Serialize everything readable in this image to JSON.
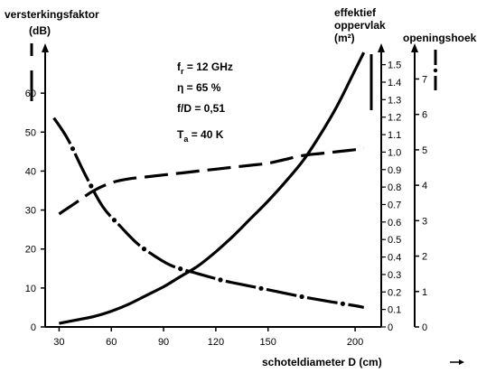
{
  "chart_data": {
    "type": "line",
    "x": {
      "label": "schoteldiameter D (cm)",
      "ticks": [
        30,
        60,
        90,
        120,
        150,
        200
      ],
      "range": [
        22,
        215
      ]
    },
    "axes": {
      "gain": {
        "title_line1": "versterkingsfaktor",
        "title_line2": "(dB)",
        "ticks": [
          0,
          10,
          20,
          30,
          40,
          50,
          60
        ],
        "range": [
          0,
          70
        ]
      },
      "area": {
        "title_line1": "effektief",
        "title_line2": "oppervlak",
        "title_line3": "(m²)",
        "ticks": [
          "0",
          "0.1",
          "0.2",
          "0.3",
          "0.4",
          "0.5",
          "0.6",
          "0.7",
          "0.8",
          "0.9",
          "1.0",
          "1.1",
          "1.2",
          "1.3",
          "1.4",
          "1.5"
        ],
        "range": [
          0,
          1.56
        ]
      },
      "angle": {
        "title": "openingshoek",
        "ticks": [
          0,
          1,
          2,
          3,
          4,
          5,
          6,
          7
        ],
        "range": [
          0,
          7.7
        ]
      }
    },
    "parameters": {
      "line1": "f",
      "line1_sub": "r",
      "line1_rest": " = 12 GHz",
      "line2": "η = 65 %",
      "line3": "f/D = 0,51",
      "line4": "T",
      "line4_sub": "a",
      "line4_rest": " = 40 K"
    },
    "series": [
      {
        "axis": "area",
        "style": "solid",
        "points": [
          [
            30,
            0.02
          ],
          [
            40,
            0.04
          ],
          [
            50,
            0.06
          ],
          [
            60,
            0.09
          ],
          [
            70,
            0.13
          ],
          [
            80,
            0.18
          ],
          [
            90,
            0.23
          ],
          [
            100,
            0.29
          ],
          [
            110,
            0.35
          ],
          [
            120,
            0.43
          ],
          [
            130,
            0.52
          ],
          [
            140,
            0.62
          ],
          [
            150,
            0.72
          ],
          [
            160,
            0.83
          ],
          [
            170,
            0.95
          ],
          [
            180,
            1.1
          ],
          [
            190,
            1.27
          ],
          [
            200,
            1.47
          ],
          [
            205,
            1.57
          ]
        ]
      },
      {
        "axis": "gain",
        "style": "dashed",
        "points": [
          [
            30,
            29
          ],
          [
            40,
            32
          ],
          [
            50,
            35
          ],
          [
            60,
            37
          ],
          [
            70,
            38
          ],
          [
            80,
            38.5
          ],
          [
            90,
            39
          ],
          [
            100,
            39.5
          ],
          [
            110,
            40
          ],
          [
            120,
            40.5
          ],
          [
            130,
            41
          ],
          [
            140,
            41.5
          ],
          [
            150,
            42
          ],
          [
            160,
            43
          ],
          [
            170,
            44
          ],
          [
            180,
            44.5
          ],
          [
            190,
            45
          ],
          [
            200,
            45.5
          ],
          [
            205,
            46
          ]
        ]
      },
      {
        "axis": "angle",
        "style": "dash-dot",
        "points": [
          [
            27,
            5.9
          ],
          [
            35,
            5.3
          ],
          [
            45,
            4.3
          ],
          [
            55,
            3.4
          ],
          [
            65,
            2.85
          ],
          [
            75,
            2.35
          ],
          [
            85,
            2.0
          ],
          [
            95,
            1.72
          ],
          [
            110,
            1.5
          ],
          [
            125,
            1.3
          ],
          [
            140,
            1.15
          ],
          [
            155,
            1.0
          ],
          [
            170,
            0.85
          ],
          [
            185,
            0.72
          ],
          [
            200,
            0.6
          ],
          [
            205,
            0.55
          ]
        ]
      }
    ]
  }
}
